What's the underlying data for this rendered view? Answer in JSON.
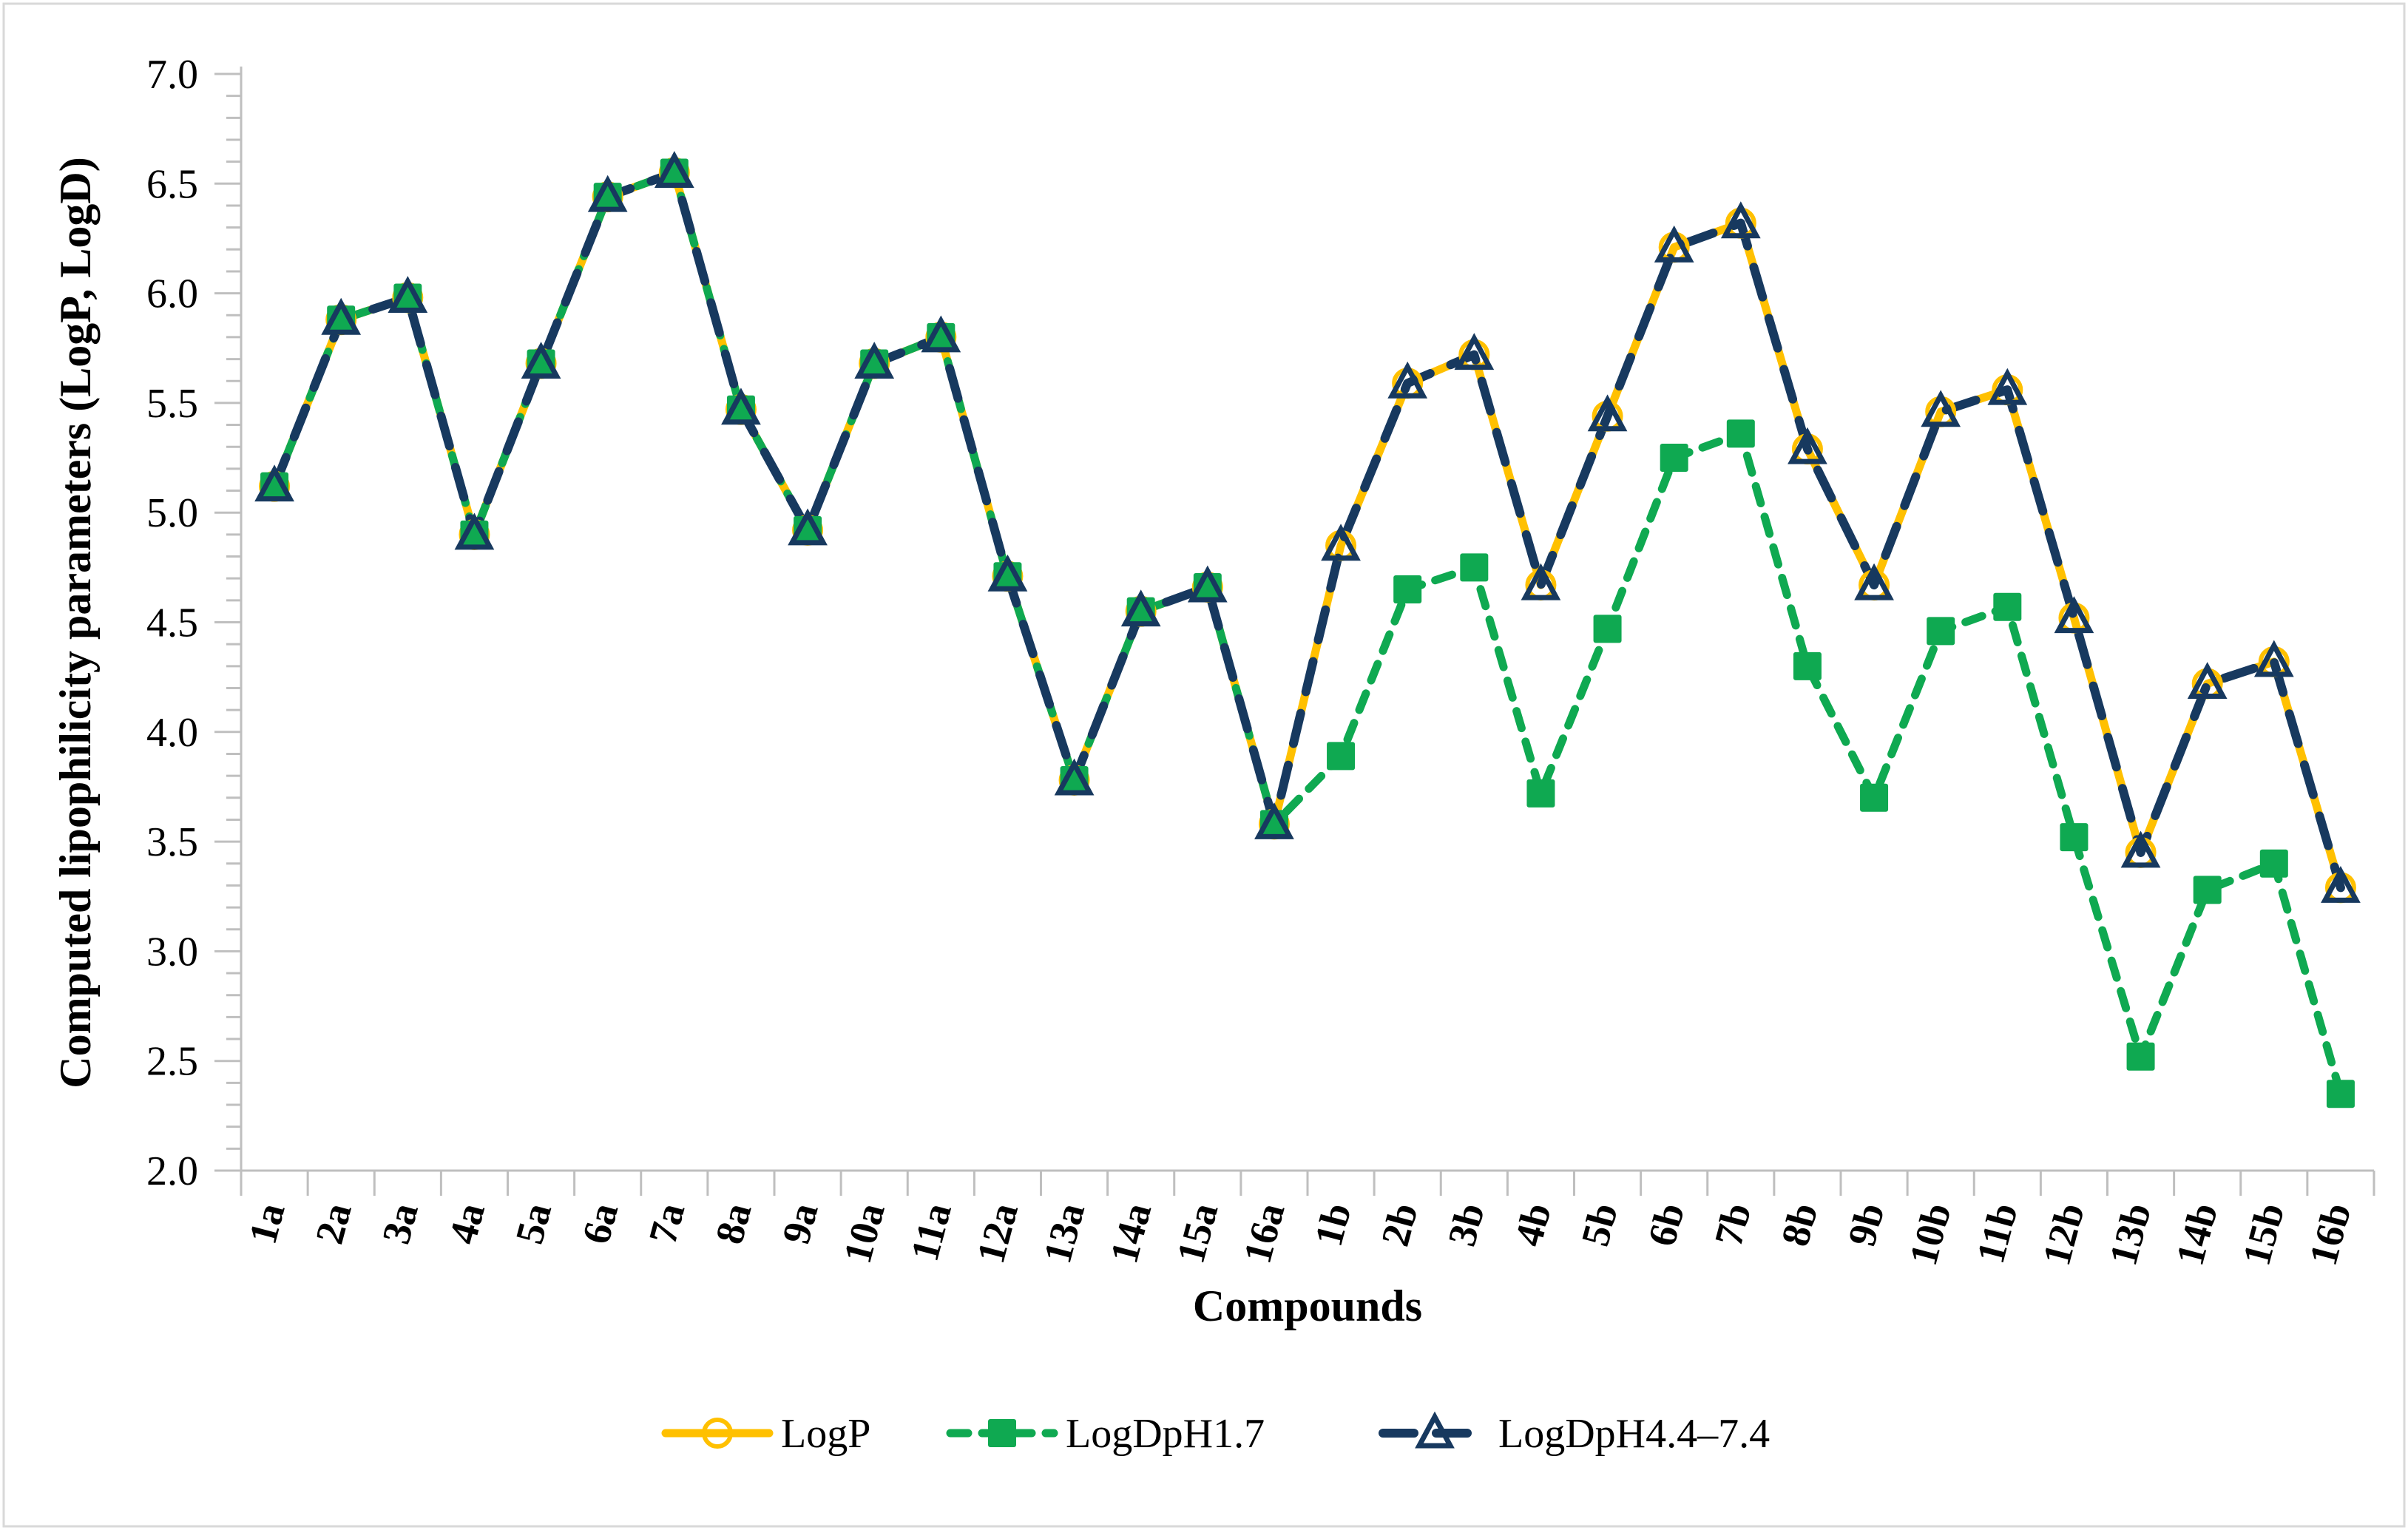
{
  "figure": {
    "background": "#ffffff",
    "border_color": "#d9d9d9",
    "axis_color": "#bfbfbf",
    "text_color": "#000000"
  },
  "chart_data": {
    "type": "line",
    "title": "",
    "xlabel": "Compounds",
    "ylabel": "Computed lipophilicity parameters (LogP, LogD)",
    "ylim": [
      2.0,
      7.0
    ],
    "y_major_step": 0.5,
    "y_minor_step": 0.1,
    "grid": false,
    "legend_position": "bottom-center",
    "y_tick_labels": [
      "7.0",
      "6.5",
      "6.0",
      "5.5",
      "5.0",
      "4.5",
      "4.0",
      "3.5",
      "3.0",
      "2.5",
      "2.0"
    ],
    "categories": [
      "1a",
      "2a",
      "3a",
      "4a",
      "5a",
      "6a",
      "7a",
      "8a",
      "9a",
      "10a",
      "11a",
      "12a",
      "13a",
      "14a",
      "15a",
      "16a",
      "1b",
      "2b",
      "3b",
      "4b",
      "5b",
      "6b",
      "7b",
      "8b",
      "9b",
      "10b",
      "11b",
      "12b",
      "13b",
      "14b",
      "15b",
      "16b"
    ],
    "series": [
      {
        "name": "LogP",
        "color": "#ffc000",
        "line_style": "solid",
        "marker": "circle-open",
        "values": [
          5.12,
          5.88,
          5.98,
          4.9,
          5.68,
          6.44,
          6.55,
          5.47,
          4.92,
          5.68,
          5.8,
          4.71,
          3.78,
          4.55,
          4.66,
          3.58,
          4.85,
          5.59,
          5.72,
          4.67,
          5.44,
          6.21,
          6.32,
          5.29,
          4.67,
          5.46,
          5.56,
          4.52,
          3.45,
          4.22,
          4.32,
          3.29
        ]
      },
      {
        "name": "LogDpH1.7",
        "color": "#0fa951",
        "line_style": "dashed",
        "marker": "square-filled",
        "values": [
          5.12,
          5.88,
          5.98,
          4.9,
          5.68,
          6.44,
          6.55,
          5.47,
          4.92,
          5.68,
          5.8,
          4.71,
          3.78,
          4.55,
          4.66,
          3.58,
          3.89,
          4.65,
          4.75,
          3.72,
          4.47,
          5.25,
          5.36,
          4.3,
          3.7,
          4.46,
          4.57,
          3.52,
          2.52,
          3.28,
          3.4,
          2.35
        ]
      },
      {
        "name": "LogDpH4.4–7.4",
        "color": "#17395f",
        "line_style": "long-dash",
        "marker": "triangle-open",
        "values": [
          5.12,
          5.88,
          5.98,
          4.9,
          5.68,
          6.44,
          6.55,
          5.47,
          4.92,
          5.68,
          5.8,
          4.71,
          3.78,
          4.55,
          4.66,
          3.58,
          4.85,
          5.59,
          5.72,
          4.67,
          5.44,
          6.21,
          6.32,
          5.29,
          4.67,
          5.46,
          5.56,
          4.52,
          3.45,
          4.22,
          4.32,
          3.29
        ]
      }
    ]
  }
}
